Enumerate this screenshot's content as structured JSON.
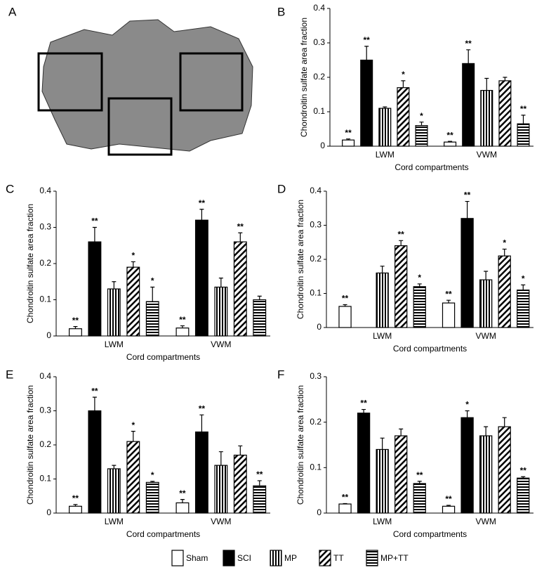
{
  "image_panel": {
    "label": "A"
  },
  "chart_data": [
    {
      "type": "bar",
      "label": "B",
      "xlabel": "Cord compartments",
      "ylabel": "Chondroitin sulfate area fraction",
      "categories": [
        "LWM",
        "VWM"
      ],
      "ylim": [
        0,
        0.4
      ],
      "yticks": [
        0,
        0.1,
        0.2,
        0.3,
        0.4
      ],
      "grid": false,
      "series": [
        {
          "name": "Sham",
          "color": "#ffffff",
          "pattern": "none",
          "values": [
            0.018,
            0.012
          ],
          "errors": [
            0.003,
            0.002
          ],
          "annotations": [
            "**",
            "**"
          ]
        },
        {
          "name": "SCI",
          "color": "#000000",
          "pattern": "solid",
          "values": [
            0.25,
            0.24
          ],
          "errors": [
            0.04,
            0.04
          ],
          "annotations": [
            "**",
            "**"
          ]
        },
        {
          "name": "MP",
          "color": "#000000",
          "pattern": "vertical",
          "values": [
            0.11,
            0.162
          ],
          "errors": [
            0.004,
            0.035
          ],
          "annotations": [
            null,
            null
          ]
        },
        {
          "name": "TT",
          "color": "#000000",
          "pattern": "diagonal",
          "values": [
            0.17,
            0.19
          ],
          "errors": [
            0.02,
            0.01
          ],
          "annotations": [
            "*",
            null
          ]
        },
        {
          "name": "MP+TT",
          "color": "#000000",
          "pattern": "horizontal",
          "values": [
            0.06,
            0.065
          ],
          "errors": [
            0.01,
            0.025
          ],
          "annotations": [
            "*",
            "**"
          ]
        }
      ]
    },
    {
      "type": "bar",
      "label": "C",
      "xlabel": "Cord compartments",
      "ylabel": "Chondroitin sulfate area fraction",
      "categories": [
        "LWM",
        "VWM"
      ],
      "ylim": [
        0,
        0.4
      ],
      "yticks": [
        0,
        0.1,
        0.2,
        0.3,
        0.4
      ],
      "grid": false,
      "series": [
        {
          "name": "Sham",
          "color": "#ffffff",
          "pattern": "none",
          "values": [
            0.02,
            0.022
          ],
          "errors": [
            0.006,
            0.006
          ],
          "annotations": [
            "**",
            "**"
          ]
        },
        {
          "name": "SCI",
          "color": "#000000",
          "pattern": "solid",
          "values": [
            0.26,
            0.32
          ],
          "errors": [
            0.04,
            0.03
          ],
          "annotations": [
            "**",
            "**"
          ]
        },
        {
          "name": "MP",
          "color": "#000000",
          "pattern": "vertical",
          "values": [
            0.13,
            0.135
          ],
          "errors": [
            0.02,
            0.025
          ],
          "annotations": [
            null,
            null
          ]
        },
        {
          "name": "TT",
          "color": "#000000",
          "pattern": "diagonal",
          "values": [
            0.19,
            0.26
          ],
          "errors": [
            0.015,
            0.025
          ],
          "annotations": [
            "*",
            "**"
          ]
        },
        {
          "name": "MP+TT",
          "color": "#000000",
          "pattern": "horizontal",
          "values": [
            0.095,
            0.1
          ],
          "errors": [
            0.04,
            0.01
          ],
          "annotations": [
            "*",
            null
          ]
        }
      ]
    },
    {
      "type": "bar",
      "label": "D",
      "xlabel": "Cord compartments",
      "ylabel": "Chondroitin sulfate area fraction",
      "categories": [
        "LWM",
        "VWM"
      ],
      "ylim": [
        0,
        0.4
      ],
      "yticks": [
        0,
        0.1,
        0.2,
        0.3,
        0.4
      ],
      "grid": false,
      "series": [
        {
          "name": "Sham",
          "color": "#ffffff",
          "pattern": "none",
          "values": [
            0.062,
            0.072
          ],
          "errors": [
            0.005,
            0.008
          ],
          "annotations": [
            "**",
            "**"
          ]
        },
        {
          "name": "SCI",
          "color": "#000000",
          "pattern": "solid",
          "values": [
            null,
            0.32
          ],
          "errors": [
            null,
            0.05
          ],
          "annotations": [
            null,
            "**"
          ]
        },
        {
          "name": "MP",
          "color": "#000000",
          "pattern": "vertical",
          "values": [
            0.16,
            0.14
          ],
          "errors": [
            0.02,
            0.025
          ],
          "annotations": [
            null,
            null
          ]
        },
        {
          "name": "TT",
          "color": "#000000",
          "pattern": "diagonal",
          "values": [
            0.24,
            0.21
          ],
          "errors": [
            0.015,
            0.02
          ],
          "annotations": [
            "**",
            "*"
          ]
        },
        {
          "name": "MP+TT",
          "color": "#000000",
          "pattern": "horizontal",
          "values": [
            0.12,
            0.11
          ],
          "errors": [
            0.008,
            0.015
          ],
          "annotations": [
            "*",
            "*"
          ]
        }
      ]
    },
    {
      "type": "bar",
      "label": "E",
      "xlabel": "Cord compartments",
      "ylabel": "Chondroitin sulfate area fraction",
      "categories": [
        "LWM",
        "VWM"
      ],
      "ylim": [
        0,
        0.4
      ],
      "yticks": [
        0,
        0.1,
        0.2,
        0.3,
        0.4
      ],
      "grid": false,
      "series": [
        {
          "name": "Sham",
          "color": "#ffffff",
          "pattern": "none",
          "values": [
            0.02,
            0.03
          ],
          "errors": [
            0.005,
            0.01
          ],
          "annotations": [
            "**",
            "**"
          ]
        },
        {
          "name": "SCI",
          "color": "#000000",
          "pattern": "solid",
          "values": [
            0.3,
            0.238
          ],
          "errors": [
            0.04,
            0.05
          ],
          "annotations": [
            "**",
            "**"
          ]
        },
        {
          "name": "MP",
          "color": "#000000",
          "pattern": "vertical",
          "values": [
            0.13,
            0.14
          ],
          "errors": [
            0.01,
            0.04
          ],
          "annotations": [
            null,
            null
          ]
        },
        {
          "name": "TT",
          "color": "#000000",
          "pattern": "diagonal",
          "values": [
            0.21,
            0.17
          ],
          "errors": [
            0.03,
            0.027
          ],
          "annotations": [
            "*",
            null
          ]
        },
        {
          "name": "MP+TT",
          "color": "#000000",
          "pattern": "horizontal",
          "values": [
            0.09,
            0.08
          ],
          "errors": [
            0.003,
            0.015
          ],
          "annotations": [
            "*",
            "**"
          ]
        }
      ]
    },
    {
      "type": "bar",
      "label": "F",
      "xlabel": "Cord compartments",
      "ylabel": "Chondroitin sulfate area fraction",
      "categories": [
        "LWM",
        "VWM"
      ],
      "ylim": [
        0,
        0.3
      ],
      "yticks": [
        0,
        0.1,
        0.2,
        0.3
      ],
      "grid": false,
      "series": [
        {
          "name": "Sham",
          "color": "#ffffff",
          "pattern": "none",
          "values": [
            0.02,
            0.015
          ],
          "errors": [
            0.001,
            0.002
          ],
          "annotations": [
            "**",
            "**"
          ]
        },
        {
          "name": "SCI",
          "color": "#000000",
          "pattern": "solid",
          "values": [
            0.22,
            0.21
          ],
          "errors": [
            0.008,
            0.015
          ],
          "annotations": [
            "**",
            "*"
          ]
        },
        {
          "name": "MP",
          "color": "#000000",
          "pattern": "vertical",
          "values": [
            0.14,
            0.17
          ],
          "errors": [
            0.025,
            0.02
          ],
          "annotations": [
            null,
            null
          ]
        },
        {
          "name": "TT",
          "color": "#000000",
          "pattern": "diagonal",
          "values": [
            0.17,
            0.19
          ],
          "errors": [
            0.015,
            0.02
          ],
          "annotations": [
            null,
            null
          ]
        },
        {
          "name": "MP+TT",
          "color": "#000000",
          "pattern": "horizontal",
          "values": [
            0.065,
            0.077
          ],
          "errors": [
            0.005,
            0.003
          ],
          "annotations": [
            "**",
            "**"
          ]
        }
      ]
    }
  ]
}
